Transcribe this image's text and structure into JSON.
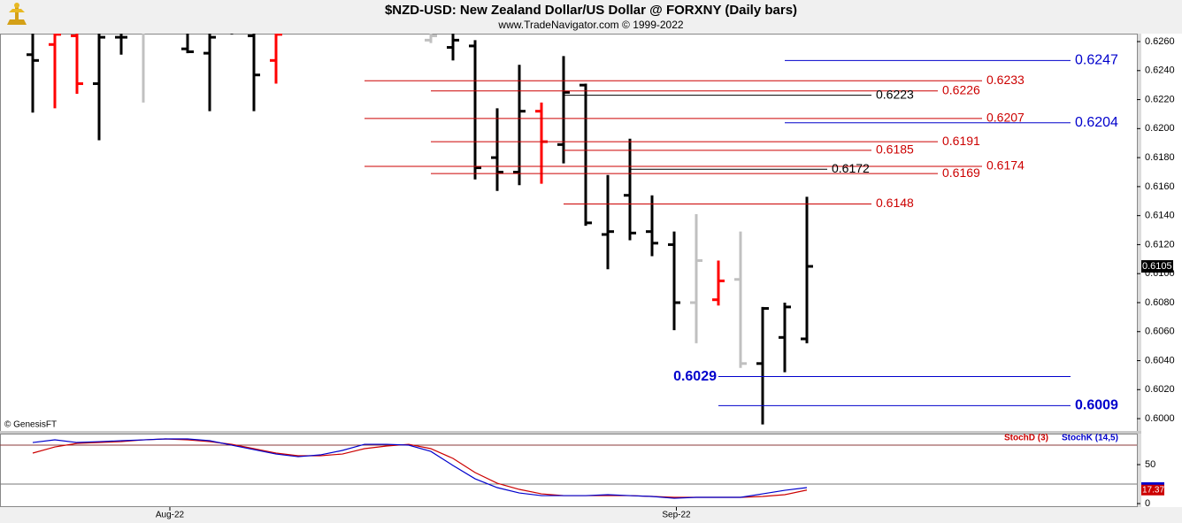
{
  "chart_data": [
    {
      "type": "ohlc",
      "title": "$NZD-USD:  New Zealand Dollar/US Dollar @ FORXNY  (Daily bars)",
      "subtitle": "www.TradeNavigator.com © 1999-2022",
      "annotation": "© GenesisFT",
      "x": [
        0,
        1,
        2,
        3,
        4,
        5,
        7,
        8,
        9,
        10,
        11,
        18,
        19,
        20,
        21,
        22,
        23,
        24,
        25,
        26,
        27,
        28,
        29,
        30,
        31,
        32,
        33,
        34,
        35
      ],
      "open": [
        0.6251,
        0.6258,
        0.6264,
        0.6231,
        0.6263,
        0.627,
        0.6255,
        0.6252,
        0.6267,
        0.6264,
        0.6247,
        0.6261,
        0.6256,
        0.6257,
        0.618,
        0.617,
        0.6212,
        0.6189,
        0.623,
        0.6127,
        0.6154,
        0.6129,
        0.612,
        0.608,
        0.6082,
        0.6096,
        0.6038,
        0.6056,
        0.6055
      ],
      "high": [
        0.6276,
        0.6276,
        0.6276,
        0.6276,
        0.6276,
        0.6276,
        0.6276,
        0.6276,
        0.6276,
        0.6276,
        0.6276,
        0.6276,
        0.6276,
        0.6261,
        0.6214,
        0.6244,
        0.6218,
        0.625,
        0.6231,
        0.6168,
        0.6193,
        0.6154,
        0.6129,
        0.6141,
        0.6109,
        0.6129,
        0.6077,
        0.608,
        0.6153
      ],
      "low": [
        0.6211,
        0.6214,
        0.6224,
        0.6192,
        0.6251,
        0.6218,
        0.6252,
        0.6212,
        0.6265,
        0.6212,
        0.6231,
        0.6259,
        0.6247,
        0.6165,
        0.6157,
        0.6161,
        0.6162,
        0.6176,
        0.6133,
        0.6103,
        0.6123,
        0.6112,
        0.6061,
        0.6052,
        0.6078,
        0.6035,
        0.5996,
        0.6032,
        0.6052
      ],
      "close": [
        0.6247,
        0.6265,
        0.6231,
        0.6263,
        0.6263,
        0.6272,
        0.6253,
        0.6263,
        0.6267,
        0.6237,
        0.6265,
        0.6264,
        0.6261,
        0.6173,
        0.617,
        0.6212,
        0.6191,
        0.6225,
        0.6135,
        0.6129,
        0.6128,
        0.6121,
        0.608,
        0.6109,
        0.6095,
        0.6038,
        0.6076,
        0.6077,
        0.6105
      ],
      "colors": [
        "#000000",
        "#ff0000",
        "#ff0000",
        "#000000",
        "#000000",
        "#c0c0c0",
        "#000000",
        "#000000",
        "#000000",
        "#000000",
        "#ff0000",
        "#c0c0c0",
        "#000000",
        "#000000",
        "#000000",
        "#000000",
        "#ff0000",
        "#000000",
        "#000000",
        "#000000",
        "#000000",
        "#000000",
        "#000000",
        "#c0c0c0",
        "#ff0000",
        "#c0c0c0",
        "#000000",
        "#000000",
        "#000000"
      ],
      "xlim": [
        -1.48,
        49.92
      ],
      "ylim": [
        0.59915,
        0.62655
      ],
      "yticks": [
        {
          "value": 0.6,
          "label": "0.6000"
        },
        {
          "value": 0.602,
          "label": "0.6020"
        },
        {
          "value": 0.604,
          "label": "0.6040"
        },
        {
          "value": 0.606,
          "label": "0.6060"
        },
        {
          "value": 0.608,
          "label": "0.6080"
        },
        {
          "value": 0.61,
          "label": "0.6100"
        },
        {
          "value": 0.612,
          "label": "0.6120"
        },
        {
          "value": 0.614,
          "label": "0.6140"
        },
        {
          "value": 0.616,
          "label": "0.6160"
        },
        {
          "value": 0.618,
          "label": "0.6180"
        },
        {
          "value": 0.62,
          "label": "0.6200"
        },
        {
          "value": 0.622,
          "label": "0.6220"
        },
        {
          "value": 0.624,
          "label": "0.6240"
        },
        {
          "value": 0.626,
          "label": "0.6260"
        }
      ],
      "last_value": 0.6105,
      "levels": [
        {
          "value": 0.6247,
          "color": "#0000cc",
          "from": 34,
          "to": 46.92,
          "label_side": "right",
          "bold": false
        },
        {
          "value": 0.6233,
          "color": "#cc0000",
          "from": 15,
          "to": 42.92,
          "label_side": "right",
          "bold": false
        },
        {
          "value": 0.6226,
          "color": "#cc0000",
          "from": 18,
          "to": 40.92,
          "label_side": "right",
          "bold": false
        },
        {
          "value": 0.6223,
          "color": "#000000",
          "from": 24,
          "to": 37.92,
          "label_side": "right",
          "bold": false
        },
        {
          "value": 0.6207,
          "color": "#cc0000",
          "from": 15,
          "to": 42.92,
          "label_side": "right",
          "bold": false
        },
        {
          "value": 0.6204,
          "color": "#0000cc",
          "from": 34,
          "to": 46.92,
          "label_side": "right",
          "bold": false
        },
        {
          "value": 0.6191,
          "color": "#cc0000",
          "from": 18,
          "to": 40.92,
          "label_side": "right",
          "bold": false
        },
        {
          "value": 0.6185,
          "color": "#cc0000",
          "from": 24,
          "to": 37.92,
          "label_side": "right",
          "bold": false
        },
        {
          "value": 0.6174,
          "color": "#cc0000",
          "from": 15,
          "to": 42.92,
          "label_side": "right",
          "bold": false
        },
        {
          "value": 0.6172,
          "color": "#000000",
          "from": 27,
          "to": 35.92,
          "label_side": "right",
          "bold": false
        },
        {
          "value": 0.6169,
          "color": "#cc0000",
          "from": 18,
          "to": 40.92,
          "label_side": "right",
          "bold": false
        },
        {
          "value": 0.6148,
          "color": "#cc0000",
          "from": 24,
          "to": 37.92,
          "label_side": "right",
          "bold": false
        },
        {
          "value": 0.6029,
          "color": "#0000cc",
          "from": 31,
          "to": 46.92,
          "label_side": "left",
          "bold": true
        },
        {
          "value": 0.6009,
          "color": "#0000cc",
          "from": 31,
          "to": 46.92,
          "label_side": "right",
          "bold": true
        }
      ]
    },
    {
      "type": "line",
      "x": [
        0,
        1,
        2,
        3,
        4,
        5,
        6,
        7,
        8,
        9,
        10,
        11,
        12,
        13,
        14,
        15,
        16,
        17,
        18,
        19,
        20,
        21,
        22,
        23,
        24,
        25,
        26,
        27,
        28,
        29,
        30,
        31,
        32,
        33,
        34,
        35
      ],
      "series": [
        {
          "name": "StochD (3)",
          "color": "#cc0000",
          "values": [
            64.8,
            72.7,
            77.3,
            78.4,
            79.5,
            81.8,
            83.0,
            81.8,
            79.5,
            76.1,
            70.5,
            64.8,
            61.4,
            61.4,
            63.6,
            70.5,
            73.9,
            76.1,
            70.5,
            58.0,
            39.8,
            26.1,
            18.2,
            12.5,
            10.2,
            10.2,
            10.2,
            10.2,
            9.1,
            8.0,
            8.0,
            8.0,
            8.0,
            9.1,
            11.4,
            17.37
          ]
        },
        {
          "name": "StochK (14,5)",
          "color": "#0000cc",
          "values": [
            78.4,
            81.8,
            78.4,
            79.5,
            80.7,
            81.8,
            83.0,
            83.0,
            80.7,
            75.0,
            69.3,
            63.6,
            60.2,
            62.5,
            68.2,
            76.1,
            76.1,
            75.0,
            67.0,
            48.9,
            31.8,
            20.5,
            13.6,
            10.2,
            10.2,
            10.2,
            11.4,
            10.2,
            9.1,
            6.8,
            8.0,
            8.0,
            8.0,
            12.5,
            17.0,
            20.5
          ]
        }
      ],
      "xlim": [
        -1.48,
        49.92
      ],
      "ylim": [
        -4.5,
        89.8
      ],
      "yticks": [
        0,
        50
      ],
      "hlines": [
        75,
        25
      ],
      "xticks": [
        {
          "value": 6.2,
          "label": "Aug-22"
        },
        {
          "value": 29.1,
          "label": "Sep-22"
        }
      ]
    }
  ]
}
